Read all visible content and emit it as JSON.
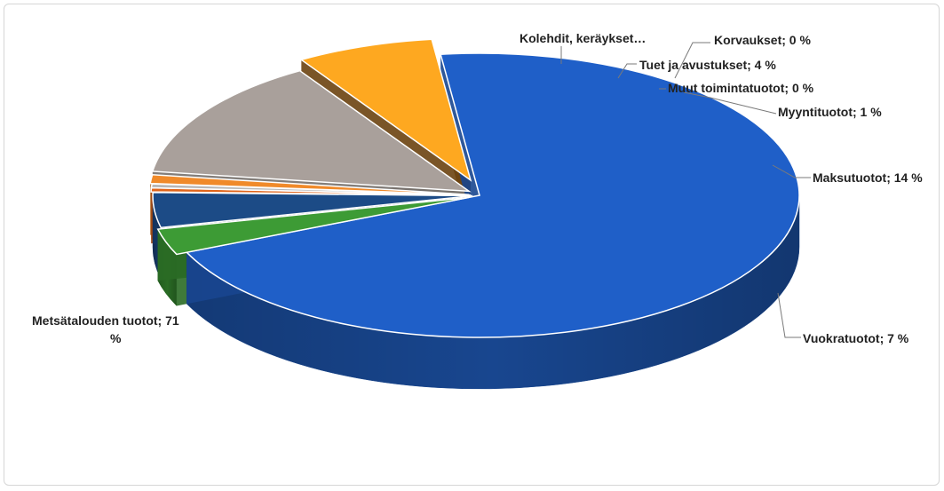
{
  "chart_data": {
    "type": "pie",
    "title": "",
    "style": "3d-exploded",
    "slices": [
      {
        "label": "Metsätalouden tuotot; 71 %",
        "name": "Metsätalouden tuotot",
        "value": 71,
        "color": "#1f5fc8",
        "side": "#18468f"
      },
      {
        "label": "Kolehdit, keräykset…",
        "name": "Kolehdit, keräykset…",
        "value": 3,
        "color": "#3d9b35",
        "side": "#2a6c25"
      },
      {
        "label": "Tuet ja avustukset; 4 %",
        "name": "Tuet ja avustukset",
        "value": 4,
        "color": "#1c4b86",
        "side": "#143560"
      },
      {
        "label": "Korvaukset; 0 %",
        "name": "Korvaukset",
        "value": 0,
        "color": "#e0651c",
        "side": "#9e4512"
      },
      {
        "label": "Muut toimintatuotot; 0 %",
        "name": "Muut toimintatuotot",
        "value": 0,
        "color": "#b7b7b7",
        "side": "#7d7d7d"
      },
      {
        "label": "Myyntituotot; 1 %",
        "name": "Myyntituotot",
        "value": 1,
        "color": "#f08a2a",
        "side": "#a85e1a"
      },
      {
        "label": "Maksutuotot; 14 %",
        "name": "Maksutuotot",
        "value": 14,
        "color": "#a9a09b",
        "side": "#75706c"
      },
      {
        "label": "Vuokratuotot; 7 %",
        "name": "Vuokratuotot",
        "value": 7,
        "color": "#fea820",
        "side": "#6b4310"
      }
    ]
  }
}
